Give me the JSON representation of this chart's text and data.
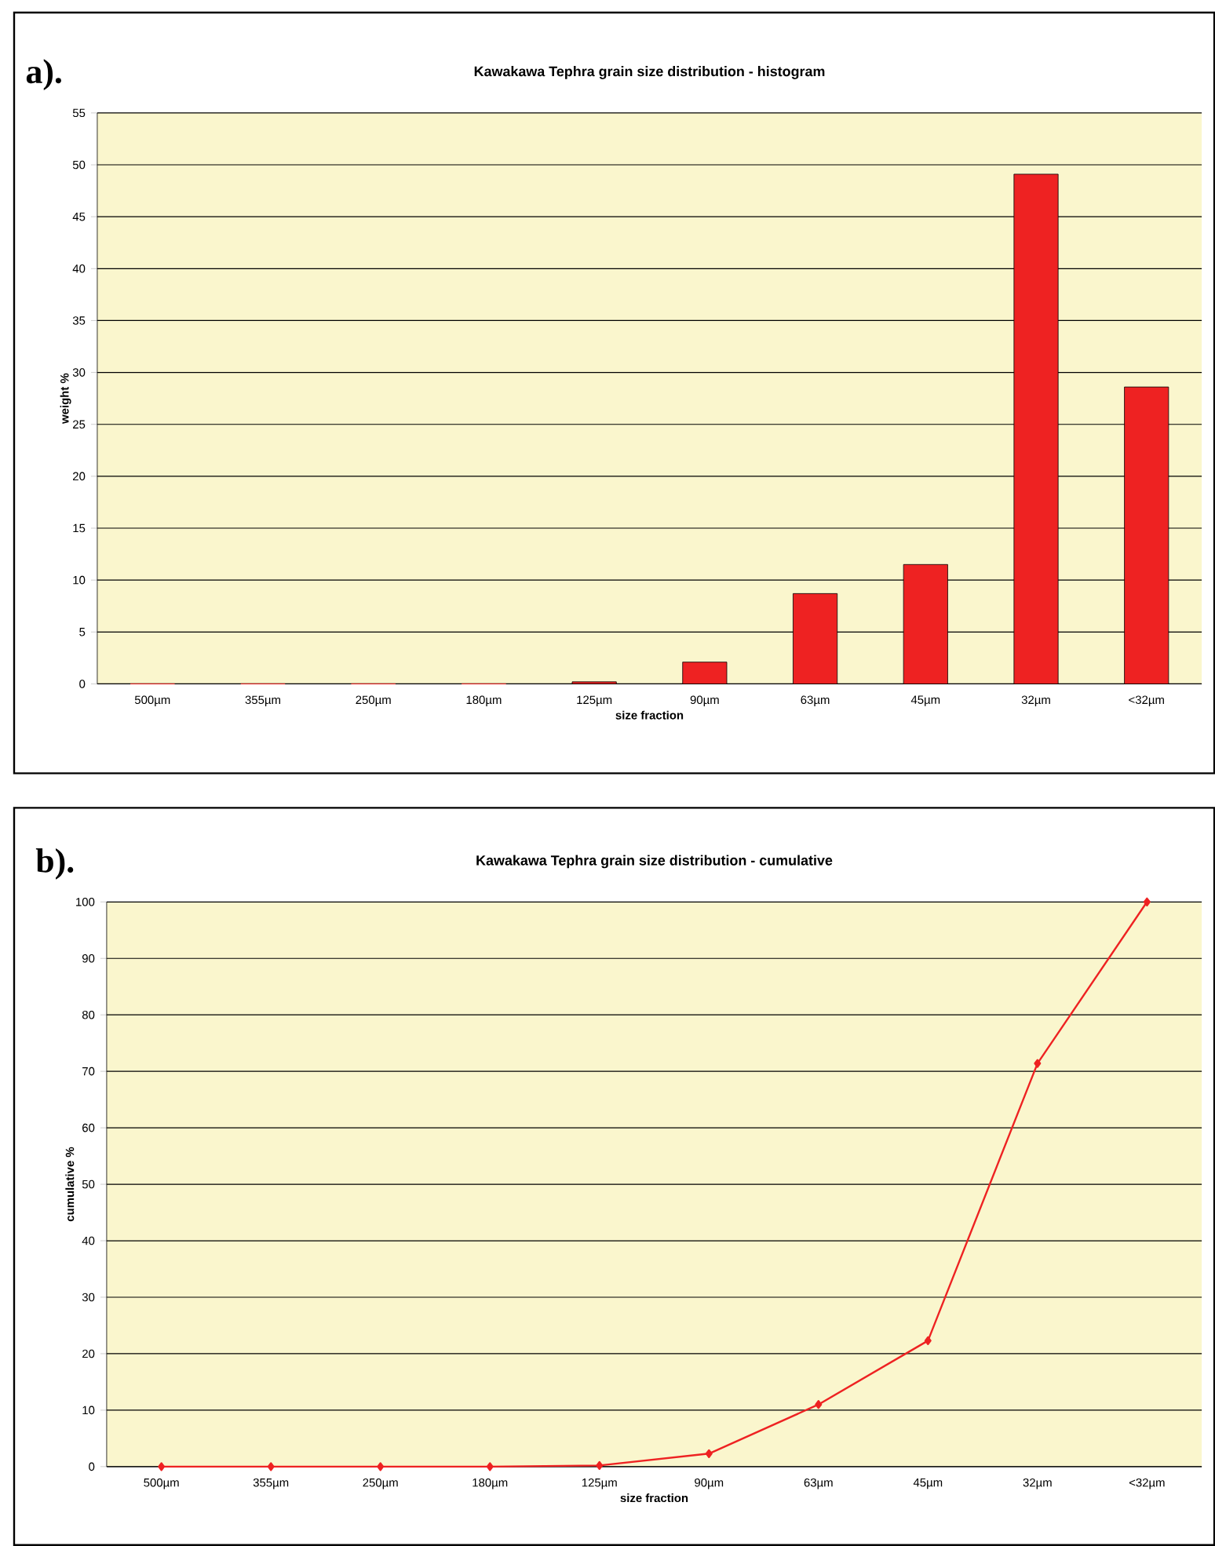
{
  "chart_data": [
    {
      "type": "bar",
      "title": "Kawakawa Tephra grain size distribution - histogram",
      "xlabel": "size fraction",
      "ylabel": "weight %",
      "annotations": [
        "a)."
      ],
      "categories": [
        "500µm",
        "355µm",
        "250µm",
        "180µm",
        "125µm",
        "90µm",
        "63µm",
        "45µm",
        "32µm",
        "<32µm"
      ],
      "values": [
        0,
        0,
        0,
        0,
        0.2,
        2.1,
        8.7,
        11.5,
        49.1,
        28.6
      ],
      "color": "#ee2222",
      "ylim": [
        0,
        55
      ],
      "yticks": [
        0,
        5,
        10,
        15,
        20,
        25,
        30,
        35,
        40,
        45,
        50,
        55
      ],
      "grid": "y"
    },
    {
      "type": "line",
      "title": "Kawakawa Tephra grain size distribution - cumulative",
      "xlabel": "size fraction",
      "ylabel": "cumulative %",
      "annotations": [
        "b)."
      ],
      "categories": [
        "500µm",
        "355µm",
        "250µm",
        "180µm",
        "125µm",
        "90µm",
        "63µm",
        "45µm",
        "32µm",
        "<32µm"
      ],
      "values": [
        0,
        0,
        0,
        0,
        0.2,
        2.3,
        11,
        22.3,
        71.4,
        100
      ],
      "color": "#ee2222",
      "marker": "diamond",
      "ylim": [
        0,
        100
      ],
      "yticks": [
        0,
        10,
        20,
        30,
        40,
        50,
        60,
        70,
        80,
        90,
        100
      ],
      "grid": "y"
    }
  ]
}
